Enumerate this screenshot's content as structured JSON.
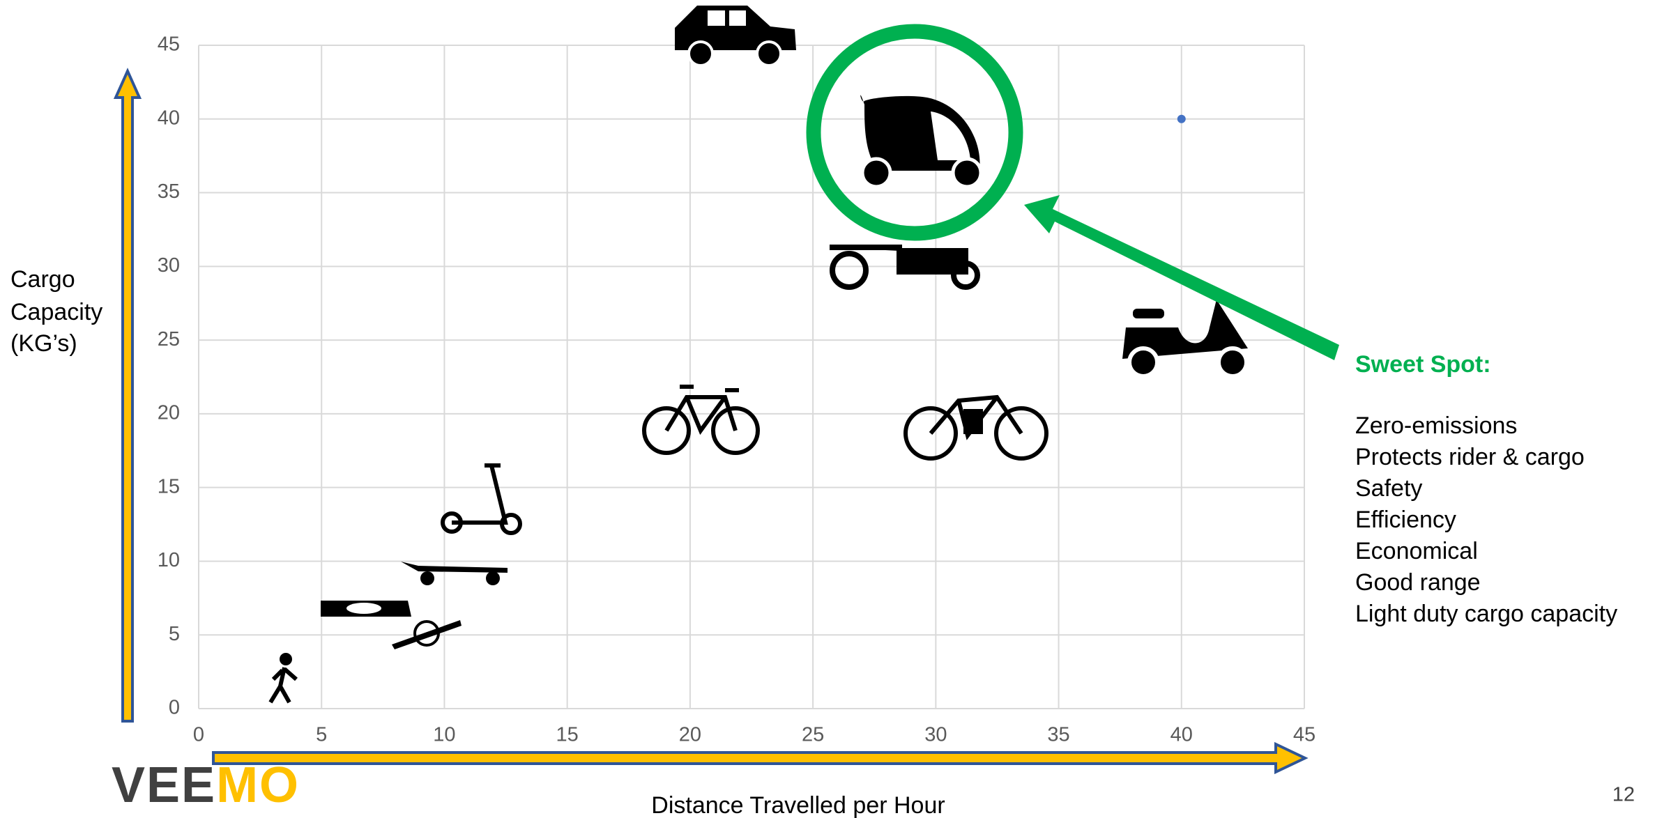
{
  "chart_data": {
    "type": "scatter",
    "x_label": "Distance Travelled per Hour",
    "y_label": [
      "Cargo",
      "Capacity",
      "(KG’s)"
    ],
    "x": [
      40
    ],
    "values": [
      40
    ],
    "color": "#4472c4",
    "xlim": [
      0,
      45
    ],
    "ylim": [
      0,
      45
    ],
    "xticks": [
      0,
      5,
      10,
      15,
      20,
      25,
      30,
      35,
      40,
      45
    ],
    "yticks": [
      0,
      5,
      10,
      15,
      20,
      25,
      30,
      35,
      40,
      45
    ],
    "grid": true
  },
  "annotation": {
    "title": "Sweet Spot:",
    "items": [
      "Zero-emissions",
      "Protects rider & cargo",
      "Safety",
      "Efficiency",
      "Economical",
      "Good range",
      "Light duty cargo capacity"
    ]
  },
  "logo": [
    "VEE",
    "MO"
  ],
  "page_number": 12
}
